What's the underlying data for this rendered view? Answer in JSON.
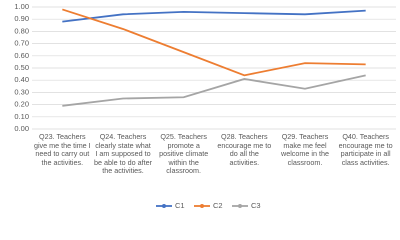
{
  "chart_data": {
    "type": "line",
    "categories": [
      "Q23. Teachers give me the time I need to carry out the activities.",
      "Q24. Teachers clearly state what I am supposed to be able to do after the activities.",
      "Q25. Teachers promote a positive climate within the classroom.",
      "Q28. Teachers encourage me to do all the activities.",
      "Q29. Teachers make me feel welcome in the classroom.",
      "Q40. Teachers encourage me to participate in all class activities."
    ],
    "series": [
      {
        "name": "C1",
        "color": "#4472c4",
        "values": [
          0.88,
          0.94,
          0.96,
          0.95,
          0.94,
          0.97
        ]
      },
      {
        "name": "C2",
        "color": "#ed7d31",
        "values": [
          0.98,
          0.82,
          0.63,
          0.44,
          0.54,
          0.53
        ]
      },
      {
        "name": "C3",
        "color": "#a5a5a5",
        "values": [
          0.19,
          0.25,
          0.26,
          0.41,
          0.33,
          0.44
        ]
      }
    ],
    "ylim": [
      0,
      1
    ],
    "yticks": [
      {
        "value": 0,
        "label": "0.00"
      },
      {
        "value": 0.1,
        "label": "0.10"
      },
      {
        "value": 0.2,
        "label": "0.20"
      },
      {
        "value": 0.3,
        "label": "0.30"
      },
      {
        "value": 0.4,
        "label": "0.40"
      },
      {
        "value": 0.5,
        "label": "0.50"
      },
      {
        "value": 0.6,
        "label": "0.60"
      },
      {
        "value": 0.7,
        "label": "0.70"
      },
      {
        "value": 0.8,
        "label": "0.80"
      },
      {
        "value": 0.9,
        "label": "0.90"
      },
      {
        "value": 1,
        "label": "1.00"
      }
    ],
    "grid": true,
    "legend": "bottom"
  }
}
